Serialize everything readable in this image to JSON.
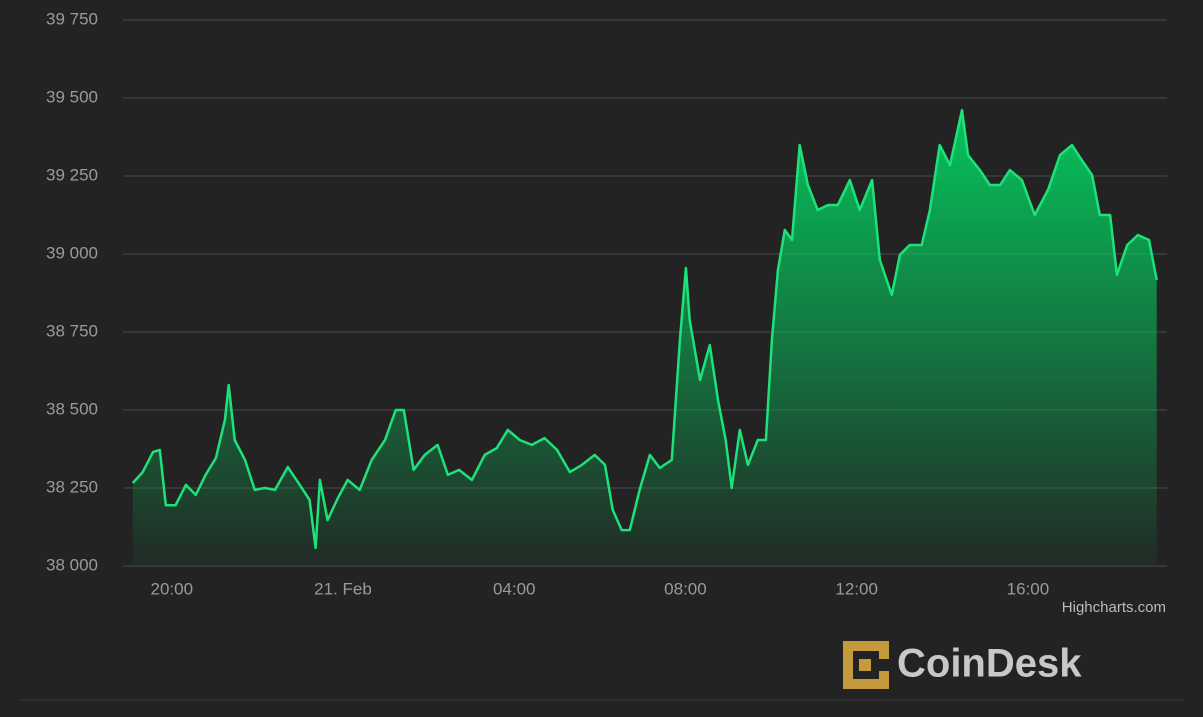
{
  "chart_data": {
    "type": "area",
    "x": [
      19.09,
      19.32,
      19.56,
      19.72,
      19.86,
      20.09,
      20.33,
      20.56,
      20.79,
      21.03,
      21.24,
      21.33,
      21.47,
      21.71,
      21.94,
      22.17,
      22.41,
      22.71,
      22.99,
      23.22,
      23.36,
      23.46,
      23.64,
      23.88,
      24.11,
      24.39,
      24.67,
      24.98,
      25.23,
      25.42,
      25.65,
      25.91,
      26.21,
      26.45,
      26.71,
      27.01,
      27.31,
      27.59,
      27.85,
      28.13,
      28.41,
      28.71,
      29.0,
      29.3,
      29.58,
      29.88,
      30.12,
      30.3,
      30.51,
      30.7,
      30.93,
      31.17,
      31.4,
      31.68,
      31.87,
      32.01,
      32.1,
      32.34,
      32.57,
      32.76,
      32.94,
      33.08,
      33.27,
      33.46,
      33.69,
      33.88,
      34.02,
      34.16,
      34.32,
      34.49,
      34.67,
      34.86,
      35.09,
      35.33,
      35.56,
      35.84,
      36.07,
      36.36,
      36.54,
      36.82,
      37.01,
      37.24,
      37.52,
      37.71,
      37.94,
      38.18,
      38.46,
      38.6,
      38.88,
      39.11,
      39.35,
      39.58,
      39.86,
      40.16,
      40.47,
      40.75,
      41.03,
      41.26,
      41.5,
      41.68,
      41.92,
      42.08,
      42.32,
      42.57,
      42.83,
      43.01
    ],
    "values": [
      38266,
      38301,
      38365,
      38372,
      38195,
      38195,
      38260,
      38228,
      38292,
      38346,
      38468,
      38580,
      38404,
      38340,
      38244,
      38250,
      38244,
      38317,
      38260,
      38212,
      38058,
      38276,
      38147,
      38218,
      38276,
      38244,
      38340,
      38404,
      38500,
      38500,
      38308,
      38356,
      38388,
      38292,
      38308,
      38276,
      38356,
      38378,
      38436,
      38404,
      38388,
      38410,
      38372,
      38301,
      38324,
      38356,
      38324,
      38180,
      38115,
      38115,
      38244,
      38356,
      38314,
      38340,
      38724,
      38955,
      38788,
      38596,
      38708,
      38532,
      38404,
      38250,
      38436,
      38324,
      38404,
      38404,
      38724,
      38948,
      39077,
      39045,
      39349,
      39221,
      39141,
      39157,
      39157,
      39237,
      39141,
      39237,
      38981,
      38869,
      38997,
      39029,
      39029,
      39141,
      39349,
      39285,
      39461,
      39317,
      39269,
      39221,
      39221,
      39269,
      39237,
      39125,
      39205,
      39317,
      39349,
      39301,
      39253,
      39125,
      39125,
      38933,
      39029,
      39061,
      39045,
      38917
    ],
    "color": "#1de27a",
    "xlim": [
      18.86,
      43.25
    ],
    "xticks": [
      {
        "value": 20,
        "label": "20:00"
      },
      {
        "value": 24,
        "label": "21. Feb"
      },
      {
        "value": 28,
        "label": "04:00"
      },
      {
        "value": 32,
        "label": "08:00"
      },
      {
        "value": 36,
        "label": "12:00"
      },
      {
        "value": 40,
        "label": "16:00"
      }
    ],
    "ylim": [
      38000,
      39750
    ],
    "yticks": [
      {
        "value": 38000,
        "label": "38 000"
      },
      {
        "value": 38250,
        "label": "38 250"
      },
      {
        "value": 38500,
        "label": "38 500"
      },
      {
        "value": 38750,
        "label": "38 750"
      },
      {
        "value": 39000,
        "label": "39 000"
      },
      {
        "value": 39250,
        "label": "39 250"
      },
      {
        "value": 39500,
        "label": "39 500"
      },
      {
        "value": 39750,
        "label": "39 750"
      }
    ],
    "grid": true,
    "credit": "Highcharts.com",
    "logo": "CoinDesk"
  }
}
